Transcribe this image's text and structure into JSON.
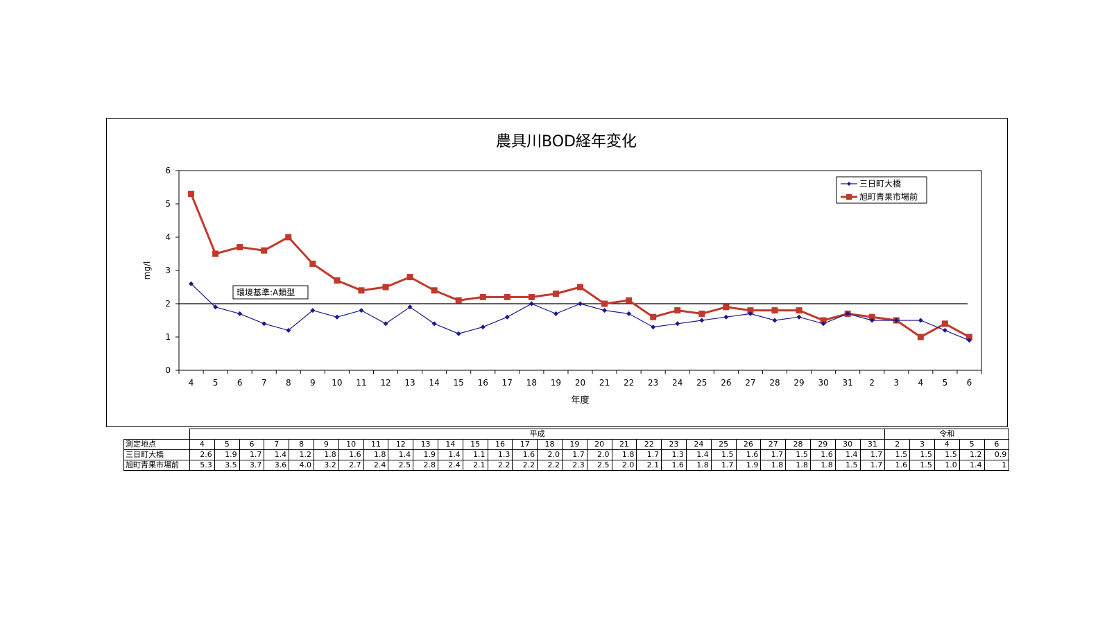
{
  "chart_data": {
    "type": "line",
    "title": "農具川BOD経年変化",
    "xlabel": "年度",
    "ylabel": "mg/l",
    "ylim": [
      0,
      6
    ],
    "yticks": [
      "0",
      "1",
      "2",
      "3",
      "4",
      "5",
      "6"
    ],
    "categories": [
      "4",
      "5",
      "6",
      "7",
      "8",
      "9",
      "10",
      "11",
      "12",
      "13",
      "14",
      "15",
      "16",
      "17",
      "18",
      "19",
      "20",
      "21",
      "22",
      "23",
      "24",
      "25",
      "26",
      "27",
      "28",
      "29",
      "30",
      "31",
      "2",
      "3",
      "4",
      "5",
      "6"
    ],
    "series": [
      {
        "name": "三日町大橋",
        "color": "#1a1a8c",
        "marker": "diamond",
        "values": [
          2.6,
          1.9,
          1.7,
          1.4,
          1.2,
          1.8,
          1.6,
          1.8,
          1.4,
          1.9,
          1.4,
          1.1,
          1.3,
          1.6,
          2.0,
          1.7,
          2.0,
          1.8,
          1.7,
          1.3,
          1.4,
          1.5,
          1.6,
          1.7,
          1.5,
          1.6,
          1.4,
          1.7,
          1.5,
          1.5,
          1.5,
          1.2,
          0.9
        ]
      },
      {
        "name": "旭町青果市場前",
        "color": "#c0392b",
        "marker": "square",
        "values": [
          5.3,
          3.5,
          3.7,
          3.6,
          4.0,
          3.2,
          2.7,
          2.4,
          2.5,
          2.8,
          2.4,
          2.1,
          2.2,
          2.2,
          2.2,
          2.3,
          2.5,
          2.0,
          2.1,
          1.6,
          1.8,
          1.7,
          1.9,
          1.8,
          1.8,
          1.8,
          1.5,
          1.7,
          1.6,
          1.5,
          1.0,
          1.4,
          1.0
        ]
      }
    ],
    "reference_line": {
      "value": 2,
      "label": "環境基準:A類型"
    },
    "legend_position": "top-right",
    "grid": false
  },
  "table": {
    "header_label": "測定地点",
    "eras": [
      {
        "label": "平成",
        "span": 28
      },
      {
        "label": "令和",
        "span": 5
      }
    ],
    "years": [
      "4",
      "5",
      "6",
      "7",
      "8",
      "9",
      "10",
      "11",
      "12",
      "13",
      "14",
      "15",
      "16",
      "17",
      "18",
      "19",
      "20",
      "21",
      "22",
      "23",
      "24",
      "25",
      "26",
      "27",
      "28",
      "29",
      "30",
      "31",
      "2",
      "3",
      "4",
      "5",
      "6"
    ],
    "rows": [
      {
        "label": "三日町大橋",
        "values": [
          "2.6",
          "1.9",
          "1.7",
          "1.4",
          "1.2",
          "1.8",
          "1.6",
          "1.8",
          "1.4",
          "1.9",
          "1.4",
          "1.1",
          "1.3",
          "1.6",
          "2.0",
          "1.7",
          "2.0",
          "1.8",
          "1.7",
          "1.3",
          "1.4",
          "1.5",
          "1.6",
          "1.7",
          "1.5",
          "1.6",
          "1.4",
          "1.7",
          "1.5",
          "1.5",
          "1.5",
          "1.2",
          "0.9"
        ]
      },
      {
        "label": "旭町青果市場前",
        "values": [
          "5.3",
          "3.5",
          "3.7",
          "3.6",
          "4.0",
          "3.2",
          "2.7",
          "2.4",
          "2.5",
          "2.8",
          "2.4",
          "2.1",
          "2.2",
          "2.2",
          "2.2",
          "2.3",
          "2.5",
          "2.0",
          "2.1",
          "1.6",
          "1.8",
          "1.7",
          "1.9",
          "1.8",
          "1.8",
          "1.8",
          "1.5",
          "1.7",
          "1.6",
          "1.5",
          "1.0",
          "1.4",
          "1"
        ]
      }
    ]
  }
}
